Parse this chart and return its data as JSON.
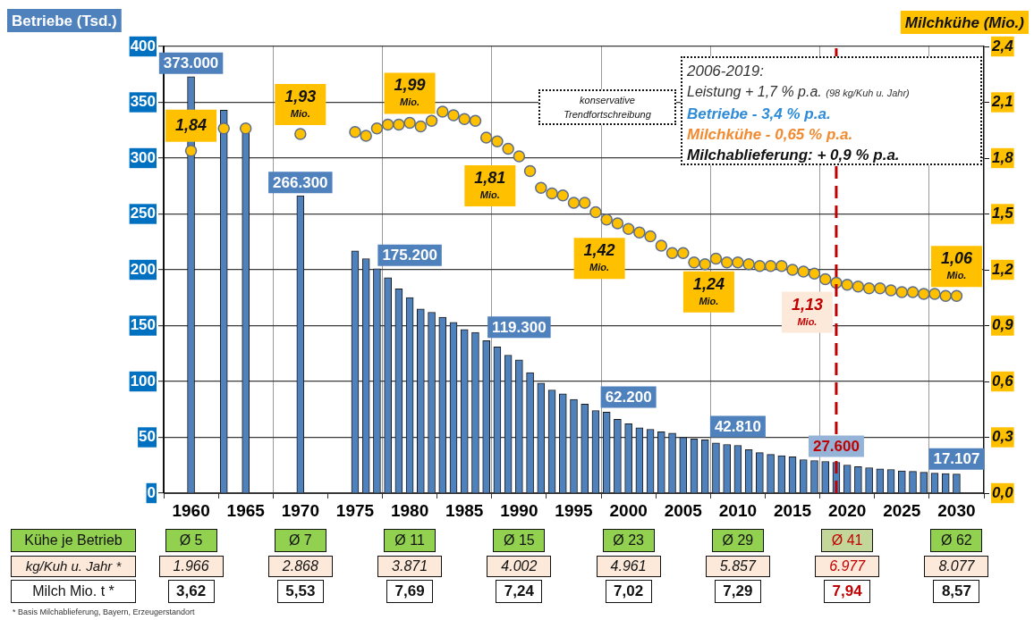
{
  "chart_data": {
    "type": "bar",
    "ylabel": "Betriebe (Tsd.)",
    "y2label": "Milchkühe (Mio.)",
    "x": [
      1960,
      1963,
      1965,
      1970,
      1975,
      1976,
      1977,
      1978,
      1979,
      1980,
      1981,
      1982,
      1983,
      1984,
      1985,
      1986,
      1987,
      1988,
      1989,
      1990,
      1991,
      1992,
      1993,
      1994,
      1995,
      1996,
      1997,
      1998,
      1999,
      2000,
      2001,
      2002,
      2003,
      2004,
      2005,
      2006,
      2007,
      2008,
      2009,
      2010,
      2011,
      2012,
      2013,
      2014,
      2015,
      2016,
      2017,
      2018,
      2019,
      2020,
      2021,
      2022,
      2023,
      2024,
      2025,
      2026,
      2027,
      2028,
      2029,
      2030
    ],
    "series": [
      {
        "color": "#4f81bd",
        "values": [
          373,
          343,
          324,
          266.3,
          217,
          210,
          201,
          193,
          183,
          175.2,
          165,
          162,
          157.5,
          153,
          146.6,
          143.9,
          136.6,
          131,
          123.6,
          119.3,
          107.9,
          98.6,
          92.4,
          88.9,
          84,
          79.7,
          74,
          72.6,
          66.1,
          62.2,
          58.5,
          57.2,
          55,
          53.7,
          49.9,
          48.5,
          47.7,
          45,
          43.6,
          42.8,
          39,
          36.3,
          34.7,
          33.6,
          32.5,
          30,
          29.2,
          28.4,
          27.6,
          25.2,
          23.8,
          22.8,
          21.7,
          21.2,
          20,
          19.5,
          18.7,
          17.9,
          17.5,
          17.1
        ]
      },
      {
        "type": "scatter",
        "axis": "y2",
        "color": "#ffc000",
        "values": [
          1.84,
          1.96,
          1.96,
          1.93,
          1.94,
          1.92,
          1.96,
          1.98,
          1.98,
          1.99,
          1.97,
          2.0,
          2.05,
          2.03,
          2.01,
          2.0,
          1.91,
          1.89,
          1.85,
          1.81,
          1.73,
          1.64,
          1.61,
          1.6,
          1.56,
          1.56,
          1.51,
          1.47,
          1.45,
          1.42,
          1.4,
          1.38,
          1.33,
          1.29,
          1.29,
          1.24,
          1.23,
          1.26,
          1.24,
          1.24,
          1.23,
          1.22,
          1.22,
          1.22,
          1.2,
          1.19,
          1.18,
          1.15,
          1.13,
          1.12,
          1.11,
          1.1,
          1.1,
          1.09,
          1.08,
          1.08,
          1.07,
          1.07,
          1.06,
          1.06
        ],
        "value_labels": [
          "1,84",
          null,
          null,
          "1,93 Mio.",
          null,
          null,
          null,
          null,
          null,
          "1,99 Mio.",
          null,
          null,
          null,
          null,
          null,
          null,
          null,
          null,
          null,
          "1,81 Mio.",
          null,
          null,
          null,
          null,
          null,
          null,
          null,
          null,
          null,
          "1,42 Mio.",
          null,
          null,
          null,
          null,
          null,
          null,
          null,
          null,
          null,
          "1,24 Mio.",
          null,
          null,
          null,
          null,
          null,
          null,
          null,
          null,
          "1,13 Mio.",
          null,
          null,
          null,
          null,
          null,
          null,
          null,
          null,
          null,
          null,
          "1,06 Mio."
        ]
      }
    ],
    "xlim": [
      1960,
      2030
    ],
    "xticks": [
      1960,
      1965,
      1970,
      1975,
      1980,
      1985,
      1990,
      1995,
      2000,
      2005,
      2010,
      2015,
      2020,
      2025,
      2030
    ],
    "ylim": [
      0,
      400
    ],
    "yticks": [
      0,
      50,
      100,
      150,
      200,
      250,
      300,
      350,
      400
    ],
    "y2lim": [
      0,
      2.4
    ],
    "y2ticks": [
      {
        "value": 0,
        "label": "0,0"
      },
      {
        "value": 0.3,
        "label": "0,3"
      },
      {
        "value": 0.6,
        "label": "0,6"
      },
      {
        "value": 0.9,
        "label": "0,9"
      },
      {
        "value": 1.2,
        "label": "1,2"
      },
      {
        "value": 1.5,
        "label": "1,5"
      },
      {
        "value": 1.8,
        "label": "1,8"
      },
      {
        "value": 2.1,
        "label": "2,1"
      },
      {
        "value": 2.4,
        "label": "2,4"
      }
    ],
    "ref_lines": [
      {
        "axis": "x",
        "value": 2019,
        "color": "#c00000",
        "line_style": "dashed"
      }
    ],
    "grid": true,
    "legend": false,
    "marker": "circle",
    "annotations": [
      "konservative Trendfortschreibung",
      "2006-2019:",
      "Leistung + 1,7 % p.a. (98 kg/Kuh u. Jahr)",
      "Betriebe - 3,4 % p.a.",
      "Milchkühe - 0,65 % p.a.",
      "Milchablieferung: + 0,9 % p.a.",
      "Kühe je Betrieb",
      "kg/Kuh u. Jahr *",
      "Milch Mio. t *",
      "* Basis Milchablieferung, Bayern, Erzeugerstandort",
      "Ø 5",
      "Ø 7",
      "Ø 11",
      "Ø 15",
      "Ø 23",
      "Ø 29",
      "Ø 41",
      "Ø 62",
      "1.966",
      "2.868",
      "3.871",
      "4.002",
      "4.961",
      "5.857",
      "6.977",
      "8.077",
      "3,62",
      "5,53",
      "7,69",
      "7,24",
      "7,02",
      "7,29",
      "7,94",
      "8,57",
      {
        "text": "373.000",
        "x": 1960,
        "y": 373
      },
      {
        "text": "266.300",
        "x": 1970,
        "y": 266.3
      },
      {
        "text": "175.200",
        "x": 1980,
        "y": 175.2
      },
      {
        "text": "119.300",
        "x": 1990,
        "y": 119.3
      },
      {
        "text": "62.200",
        "x": 2000,
        "y": 62.2
      },
      {
        "text": "42.810",
        "x": 2010,
        "y": 42.8
      },
      {
        "text": "27.600",
        "x": 2019,
        "y": 27.6
      },
      {
        "text": "17.107",
        "x": 2030,
        "y": 17.1
      }
    ]
  }
}
